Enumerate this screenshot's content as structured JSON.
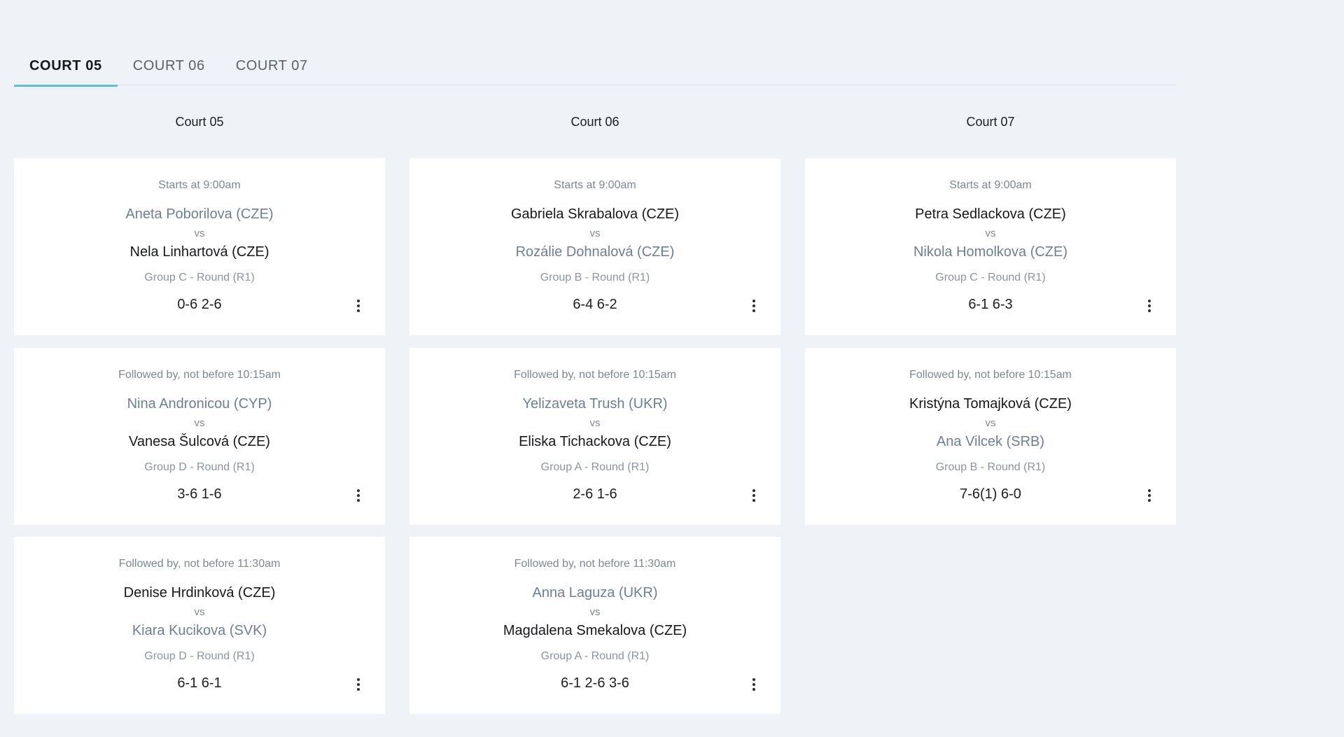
{
  "tabs": [
    {
      "label": "COURT 05",
      "active": true
    },
    {
      "label": "COURT 06",
      "active": false
    },
    {
      "label": "COURT 07",
      "active": false
    }
  ],
  "columns": [
    {
      "title": "Court 05",
      "matches": [
        {
          "time": "Starts at 9:00am",
          "player1": "Aneta Poborilova (CZE)",
          "vs": "vs",
          "player2": "Nela Linhartová (CZE)",
          "group": "Group C - Round (R1)",
          "score": "0-6 2-6",
          "player1_winner": false,
          "player2_winner": true
        },
        {
          "time": "Followed by, not before 10:15am",
          "player1": "Nina Andronicou (CYP)",
          "vs": "vs",
          "player2": "Vanesa Šulcová (CZE)",
          "group": "Group D - Round (R1)",
          "score": "3-6 1-6",
          "player1_winner": false,
          "player2_winner": true
        },
        {
          "time": "Followed by, not before 11:30am",
          "player1": "Denise Hrdinková (CZE)",
          "vs": "vs",
          "player2": "Kiara Kucikova (SVK)",
          "group": "Group D - Round (R1)",
          "score": "6-1 6-1",
          "player1_winner": true,
          "player2_winner": false
        }
      ]
    },
    {
      "title": "Court 06",
      "matches": [
        {
          "time": "Starts at 9:00am",
          "player1": "Gabriela Skrabalova (CZE)",
          "vs": "vs",
          "player2": "Rozálie Dohnalová (CZE)",
          "group": "Group B - Round (R1)",
          "score": "6-4 6-2",
          "player1_winner": true,
          "player2_winner": false
        },
        {
          "time": "Followed by, not before 10:15am",
          "player1": "Yelizaveta Trush (UKR)",
          "vs": "vs",
          "player2": "Eliska Tichackova (CZE)",
          "group": "Group A - Round (R1)",
          "score": "2-6 1-6",
          "player1_winner": false,
          "player2_winner": true
        },
        {
          "time": "Followed by, not before 11:30am",
          "player1": "Anna Laguza (UKR)",
          "vs": "vs",
          "player2": "Magdalena Smekalova (CZE)",
          "group": "Group A - Round (R1)",
          "score": "6-1 2-6 3-6",
          "player1_winner": false,
          "player2_winner": true
        }
      ]
    },
    {
      "title": "Court 07",
      "matches": [
        {
          "time": "Starts at 9:00am",
          "player1": "Petra Sedlackova (CZE)",
          "vs": "vs",
          "player2": "Nikola Homolkova (CZE)",
          "group": "Group C - Round (R1)",
          "score": "6-1 6-3",
          "player1_winner": true,
          "player2_winner": false
        },
        {
          "time": "Followed by, not before 10:15am",
          "player1": "Kristýna Tomajková (CZE)",
          "vs": "vs",
          "player2": "Ana Vilcek (SRB)",
          "group": "Group B - Round (R1)",
          "score": "7-6(1) 6-0",
          "player1_winner": true,
          "player2_winner": false
        }
      ]
    }
  ],
  "icons": {
    "match_menu": "kebab-menu-icon"
  },
  "colors": {
    "accent": "#5bbfd6",
    "winner": "#16181b",
    "loser": "#6d7f98",
    "background": "#eff2f7"
  }
}
